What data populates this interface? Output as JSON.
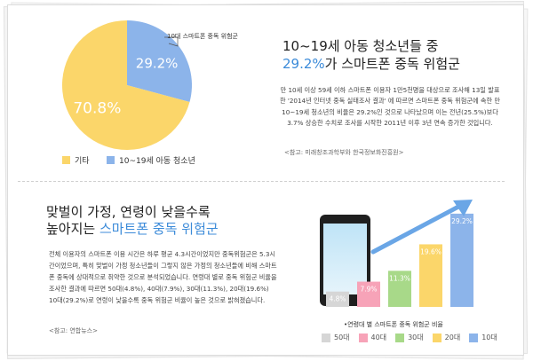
{
  "pie_section": {
    "title_line1": "10~19세 아동 청소년들 중",
    "title_highlight": "29.2%",
    "title_line2_rest": "가 스마트폰 중독 위험군",
    "callout_label": "10대 스마트폰 중독 위험군",
    "body": "만 10세 이상 59세 이하 스마트폰 이용자 1만5천명을 대상으로 조사해 13일 발표한 '2014년 인터넷 중독 실태조사 결과' 에 따르면 스마트폰 중독 위험군에 속한 만 10~19세 청소년의 비율은 29.2%인 것으로 나타났으며 이는 전년(25.5%)보다 3.7% 상승한 수치로 조사를 시작한 2011년 이후 3년 연속 증가한 것입니다.",
    "source": "<참고: 미래창조과학부와 한국정보화진흥원>"
  },
  "bar_section": {
    "title_line1": "맞벌이 가정, 연령이 낮을수록",
    "title_line2_prefix": "높아지는 ",
    "title_highlight": "스마트폰 중독 위험군",
    "body": "전체 이용자의 스마트폰 이용 시간은 하루 평균 4.3시간이었지만 중독위험군은 5.3시간이었으며, 특히 맞벌이 가정 청소년들이 그렇지 않은 가정의 청소년들에 비해 스마트폰 중독에 상대적으로 취약한 것으로 분석되었습니다. 연령대 별로 중독 위험군 비율을 조사한 결과에 따르면 50대(4.8%), 40대(7.9%), 30대(11.3%), 20대(19.6%) 10대(29.2%)로 연령이 낮을수록 중독 위험군 비율이 높은 것으로 밝혀졌습니다.",
    "source": "<참고: 연합뉴스>",
    "caption": "•연령대 별 스마트폰 중독 위험군 비율"
  },
  "chart_data": [
    {
      "type": "pie",
      "labels": [
        "기타",
        "10~19세 아동 청소년"
      ],
      "values": [
        70.8,
        29.2
      ],
      "value_labels": [
        "70.8%",
        "29.2%"
      ],
      "colors": [
        "#fbd66a",
        "#8cb4ea"
      ],
      "legend_position": "bottom"
    },
    {
      "type": "bar",
      "categories": [
        "50대",
        "40대",
        "30대",
        "20대",
        "10대"
      ],
      "values": [
        4.8,
        7.9,
        11.3,
        19.6,
        29.2
      ],
      "value_labels": [
        "4.8%",
        "7.9%",
        "11.3%",
        "19.6%",
        "29.2%"
      ],
      "colors": [
        "#d6d6d6",
        "#f7a3b8",
        "#a8d989",
        "#fbd66a",
        "#8cb4ea"
      ],
      "trend_arrow_color": "#6aa6e6",
      "legend_position": "bottom"
    }
  ]
}
